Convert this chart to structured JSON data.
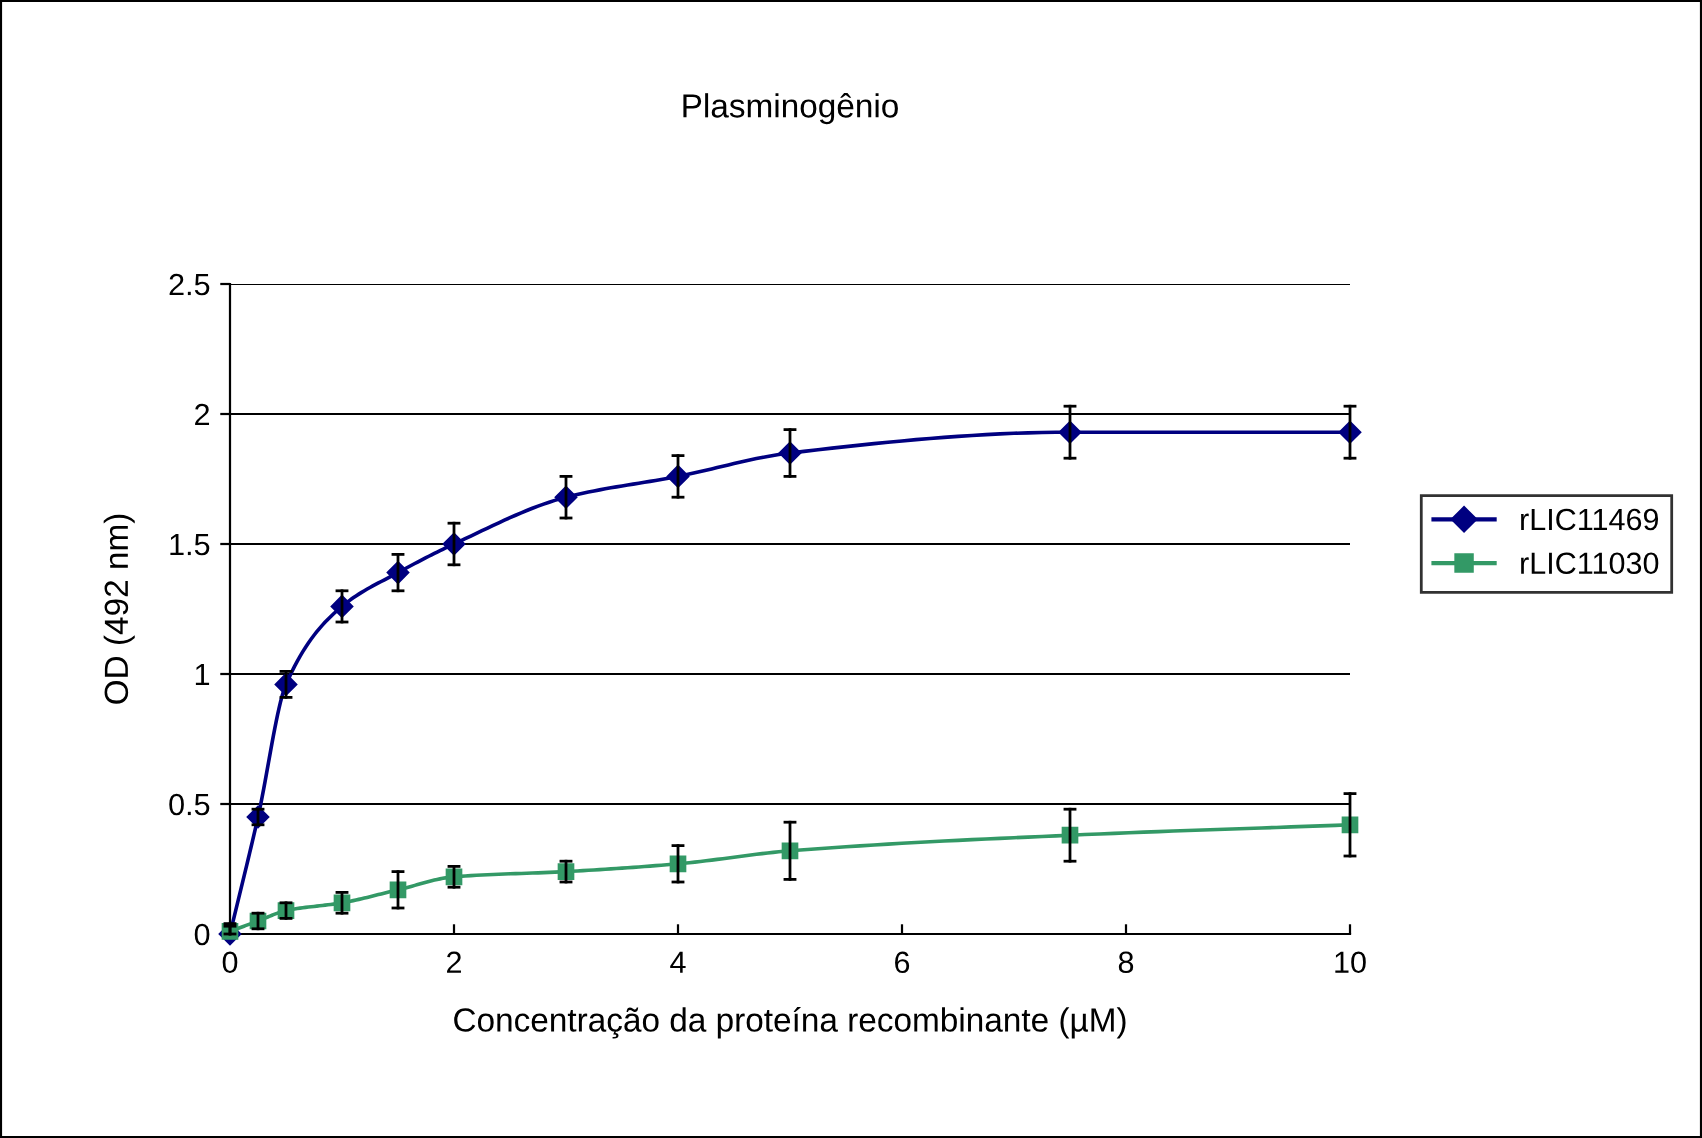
{
  "chart_data": {
    "type": "line",
    "title": "Plasminogênio",
    "xlabel": "Concentração da proteína recombinante (µM)",
    "ylabel": "OD (492 nm)",
    "x": [
      0,
      0.25,
      0.5,
      1,
      1.5,
      2,
      3,
      4,
      5,
      7.5,
      10
    ],
    "series": [
      {
        "name": "rLIC11469",
        "color": "#000080",
        "marker": "diamond",
        "values": [
          0.0,
          0.45,
          0.96,
          1.26,
          1.39,
          1.5,
          1.68,
          1.76,
          1.85,
          1.93,
          1.93
        ],
        "errors": [
          [
            0,
            0.03
          ],
          0.03,
          0.05,
          0.06,
          0.07,
          0.08,
          0.08,
          0.08,
          0.09,
          0.1,
          0.1
        ]
      },
      {
        "name": "rLIC11030",
        "color": "#339966",
        "marker": "square",
        "values": [
          0.01,
          0.05,
          0.09,
          0.12,
          0.17,
          0.22,
          0.24,
          0.27,
          0.32,
          0.38,
          0.42
        ],
        "errors": [
          [
            0,
            0.04
          ],
          0.03,
          0.03,
          0.04,
          0.07,
          0.04,
          0.04,
          0.07,
          0.11,
          0.1,
          0.12
        ]
      }
    ],
    "xlim": [
      0,
      10
    ],
    "xticks": [
      0,
      2,
      4,
      6,
      8,
      10
    ],
    "ylim": [
      0,
      2.5
    ],
    "yticks": [
      0,
      0.5,
      1,
      1.5,
      2,
      2.5
    ],
    "grid": "y",
    "legend": "right",
    "line_style": "solid"
  }
}
